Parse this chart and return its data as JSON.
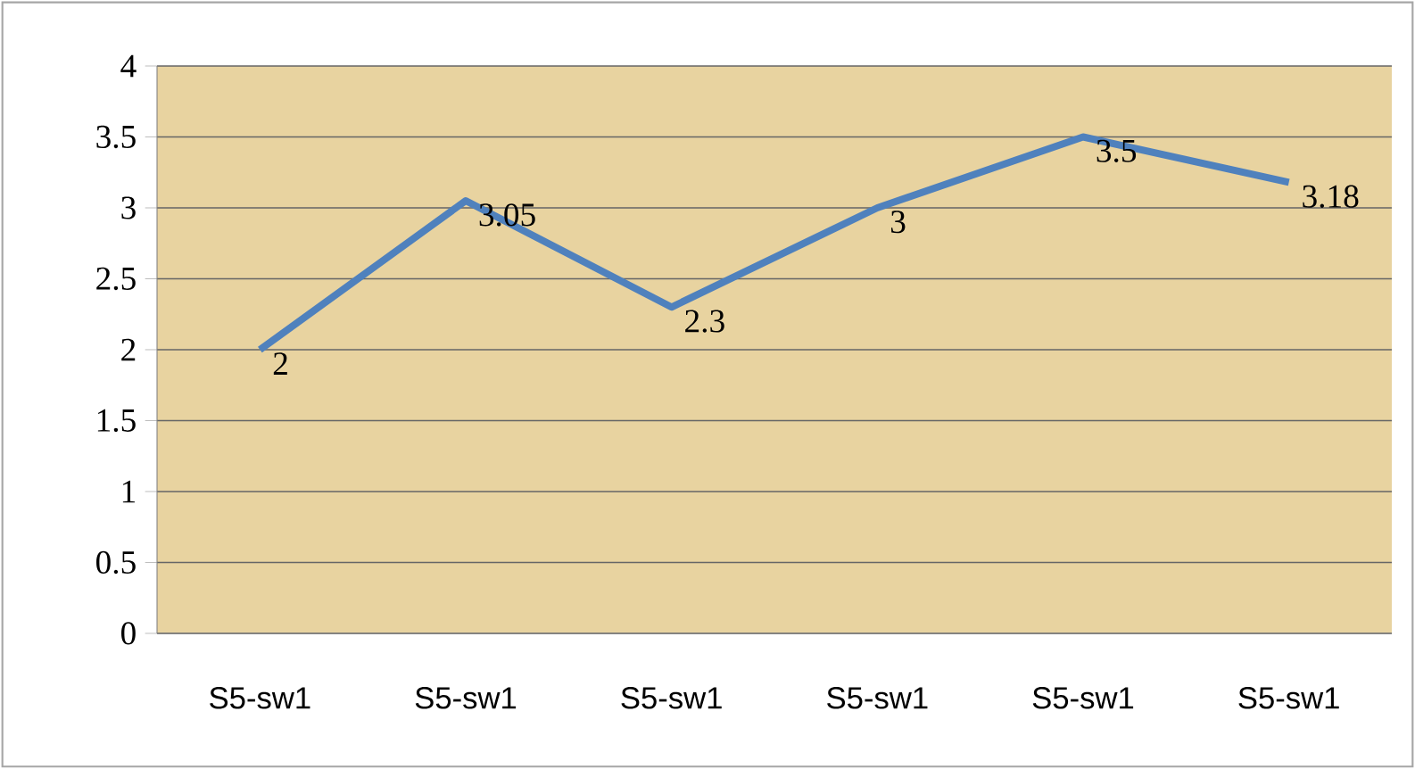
{
  "chart_data": {
    "type": "line",
    "categories": [
      "S5-sw1",
      "S5-sw1",
      "S5-sw1",
      "S5-sw1",
      "S5-sw1",
      "S5-sw1"
    ],
    "series": [
      {
        "color": "#4f81bd",
        "values": [
          2,
          3.05,
          2.3,
          3,
          3.5,
          3.18
        ]
      }
    ],
    "ylim": [
      0,
      4
    ],
    "yticks": [
      0,
      0.5,
      1,
      1.5,
      2,
      2.5,
      3,
      3.5,
      4
    ],
    "grid": "y",
    "data_labels": true,
    "marker": "none",
    "line_style": "solid"
  }
}
